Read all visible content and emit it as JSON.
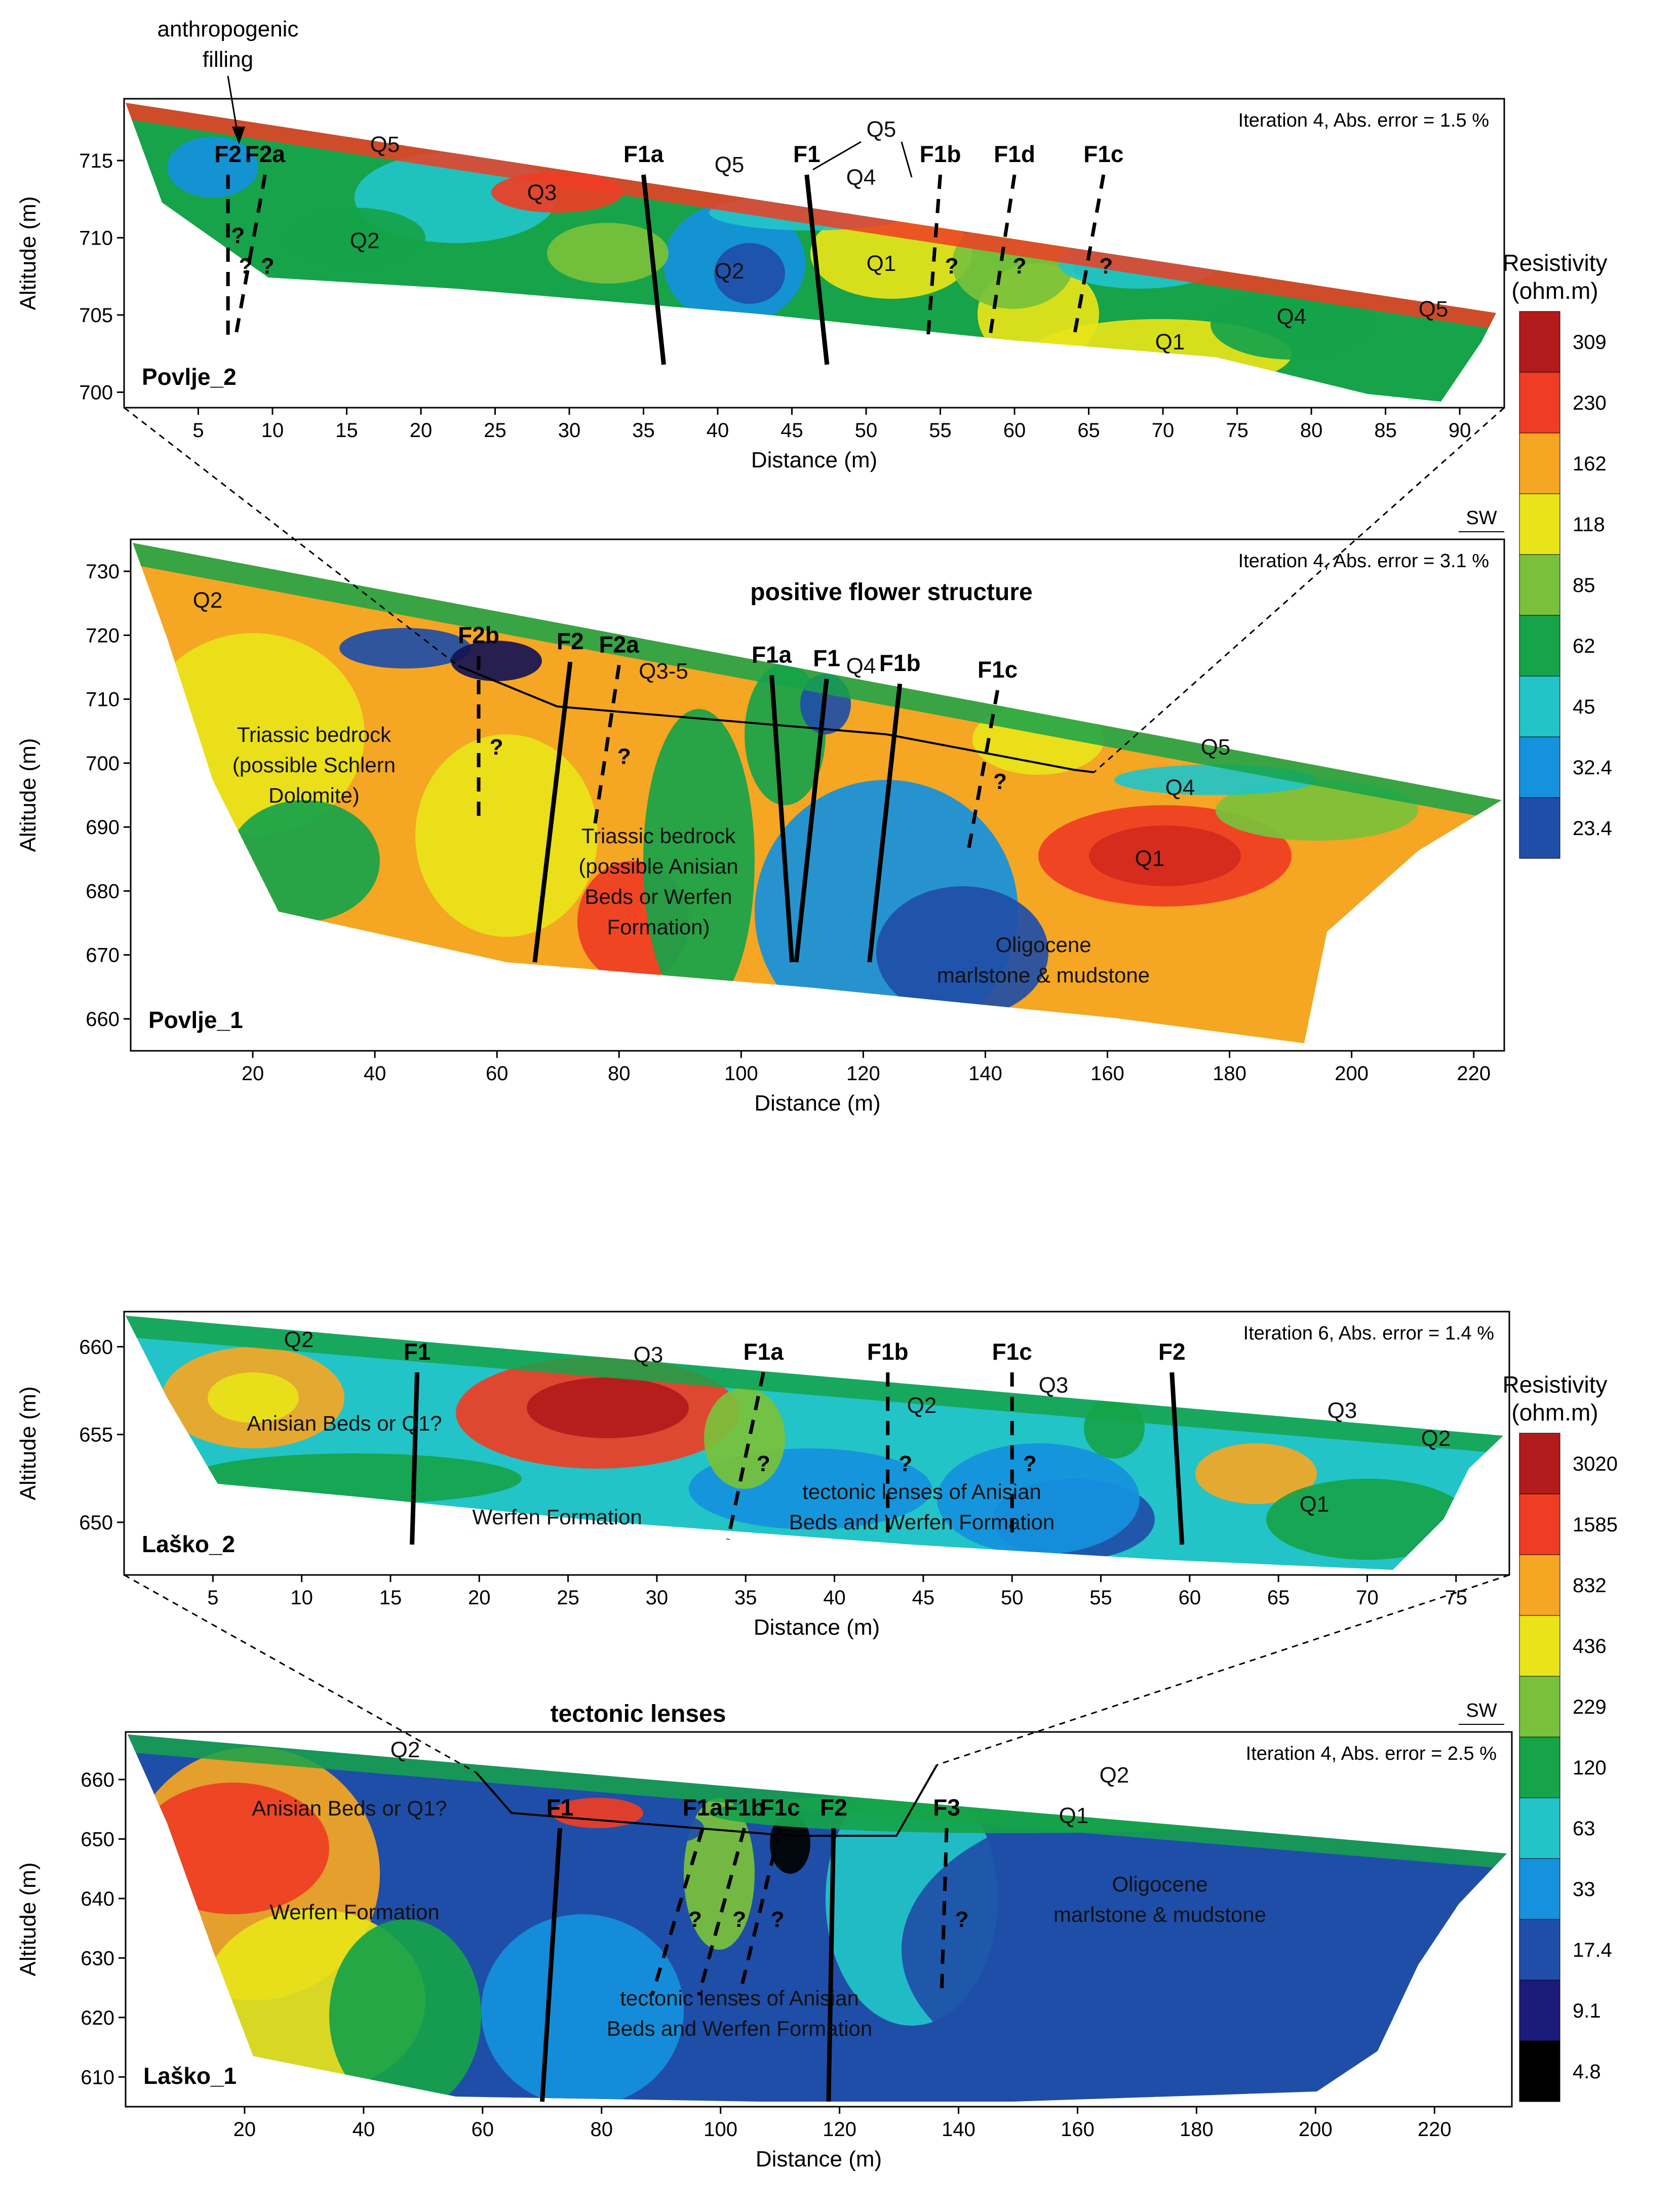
{
  "figure": {
    "colors": {
      "scale_povlje": [
        "#000000",
        "#141454",
        "#1f4ea8",
        "#1591dd",
        "#22c4c8",
        "#16a34a",
        "#79c13a",
        "#e8e419",
        "#f5a623",
        "#ef3d24",
        "#b21b1b"
      ],
      "scale_lasko": [
        "#000000",
        "#1b1b7a",
        "#1f4ea8",
        "#1591dd",
        "#22c4c8",
        "#16a34a",
        "#79c13a",
        "#e8e419",
        "#f5a623",
        "#ef3d24",
        "#b21b1b"
      ]
    }
  },
  "legends": [
    {
      "title_line1": "Resistivity",
      "title_line2": "(ohm.m)",
      "values": [
        "309",
        "230",
        "162",
        "118",
        "85",
        "62",
        "45",
        "32.4",
        "23.4"
      ]
    },
    {
      "title_line1": "Resistivity",
      "title_line2": "(ohm.m)",
      "values": [
        "3020",
        "1585",
        "832",
        "436",
        "229",
        "120",
        "63",
        "33",
        "17.4",
        "9.1",
        "4.8"
      ]
    }
  ],
  "chart_data": [
    {
      "type": "heatmap",
      "name": "Povlje_2",
      "title": "",
      "iteration": "Iteration 4, Abs. error = 1.5 %",
      "xlabel": "Distance (m)",
      "ylabel": "Altitude (m)",
      "xlim": [
        0,
        93
      ],
      "ylim": [
        699,
        719
      ],
      "x_ticks": [
        5,
        10,
        15,
        20,
        25,
        30,
        35,
        40,
        45,
        50,
        55,
        60,
        65,
        70,
        75,
        80,
        85,
        90
      ],
      "y_ticks": [
        700,
        705,
        710,
        715
      ],
      "surface": [
        [
          0,
          717.8
        ],
        [
          93,
          704.8
        ]
      ],
      "bottom": [
        [
          5,
          712
        ],
        [
          10,
          707.5
        ],
        [
          30,
          707.5
        ],
        [
          60,
          704.5
        ],
        [
          90,
          699
        ],
        [
          93,
          704
        ]
      ],
      "faults": [
        {
          "label": "F2",
          "x": 7,
          "style": "dashed"
        },
        {
          "label": "F2a",
          "x": 9.5,
          "style": "dashed"
        },
        {
          "label": "F1a",
          "x": 35,
          "style": "solid"
        },
        {
          "label": "F1",
          "x": 46,
          "style": "solid"
        },
        {
          "label": "F1b",
          "x": 55,
          "style": "dashed"
        },
        {
          "label": "F1d",
          "x": 60,
          "style": "dashed"
        },
        {
          "label": "F1c",
          "x": 66,
          "style": "dashed"
        }
      ],
      "unit_labels": [
        "Q5",
        "Q3",
        "Q2",
        "Q5",
        "Q4",
        "Q2",
        "Q1",
        "Q1",
        "Q4",
        "Q5"
      ],
      "annotations": {
        "arrow_label_1": "anthropogenic",
        "arrow_label_2": "filling",
        "q5_callout": "Q5",
        "question": "?"
      },
      "colorscale": [
        "23.4",
        "32.4",
        "45",
        "62",
        "85",
        "118",
        "162",
        "230",
        "309"
      ]
    },
    {
      "type": "heatmap",
      "name": "Povlje_1",
      "title": "positive flower structure",
      "iteration": "Iteration 4, Abs. error = 3.1 %",
      "direction": "SW",
      "xlabel": "Distance (m)",
      "ylabel": "Altitude (m)",
      "xlim": [
        0,
        225
      ],
      "ylim": [
        655,
        735
      ],
      "x_ticks": [
        20,
        40,
        60,
        80,
        100,
        120,
        140,
        160,
        180,
        200,
        220
      ],
      "y_ticks": [
        660,
        670,
        680,
        690,
        700,
        710,
        720,
        730
      ],
      "faults": [
        {
          "label": "F2b",
          "x": 57,
          "style": "dashed"
        },
        {
          "label": "F2",
          "x": 72,
          "style": "solid"
        },
        {
          "label": "F2a",
          "x": 80,
          "style": "dashed"
        },
        {
          "label": "F1a",
          "x": 105,
          "style": "solid"
        },
        {
          "label": "F1",
          "x": 114,
          "style": "solid"
        },
        {
          "label": "F1b",
          "x": 126,
          "style": "solid"
        },
        {
          "label": "F1c",
          "x": 142,
          "style": "dashed"
        }
      ],
      "unit_labels": [
        "Q2",
        "Q3-5",
        "Q4",
        "Q5",
        "Q4",
        "Q1"
      ],
      "formations": {
        "triassic_left_1": "Triassic bedrock",
        "triassic_left_2": "(possible Schlern",
        "triassic_left_3": "Dolomite)",
        "triassic_mid_1": "Triassic bedrock",
        "triassic_mid_2": "(possible Anisian",
        "triassic_mid_3": "Beds or Werfen",
        "triassic_mid_4": "Formation)",
        "oligocene_1": "Oligocene",
        "oligocene_2": "marlstone & mudstone"
      }
    },
    {
      "type": "heatmap",
      "name": "Laško_2",
      "title": "",
      "iteration": "Iteration 6, Abs. error = 1.4 %",
      "xlabel": "Distance (m)",
      "ylabel": "Altitude (m)",
      "xlim": [
        0,
        78
      ],
      "ylim": [
        647,
        662
      ],
      "x_ticks": [
        5,
        10,
        15,
        20,
        25,
        30,
        35,
        40,
        45,
        50,
        55,
        60,
        65,
        70,
        75
      ],
      "y_ticks": [
        650,
        655,
        660
      ],
      "faults": [
        {
          "label": "F1",
          "x": 16.5,
          "style": "solid"
        },
        {
          "label": "F1a",
          "x": 36,
          "style": "dashed"
        },
        {
          "label": "F1b",
          "x": 43,
          "style": "dashed"
        },
        {
          "label": "F1c",
          "x": 50,
          "style": "dashed"
        },
        {
          "label": "F2",
          "x": 59,
          "style": "solid"
        }
      ],
      "unit_labels": [
        "Q2",
        "Q3",
        "Q2",
        "Q3",
        "Q3",
        "Q2",
        "Q1"
      ],
      "formations": {
        "anisian": "Anisian Beds   or Q1?",
        "werfen": "Werfen Formation",
        "lenses_1": "tectonic lenses of Anisian",
        "lenses_2": "Beds and Werfen Formation"
      },
      "colorscale": [
        "4.8",
        "9.1",
        "17.4",
        "33",
        "63",
        "120",
        "229",
        "436",
        "832",
        "1585",
        "3020"
      ]
    },
    {
      "type": "heatmap",
      "name": "Laško_1",
      "title": "tectonic lenses",
      "iteration": "Iteration 4, Abs. error = 2.5 %",
      "direction": "SW",
      "xlabel": "Distance (m)",
      "ylabel": "Altitude (m)",
      "xlim": [
        0,
        233
      ],
      "ylim": [
        605,
        668
      ],
      "x_ticks": [
        20,
        40,
        60,
        80,
        100,
        120,
        140,
        160,
        180,
        200,
        220
      ],
      "y_ticks": [
        610,
        620,
        630,
        640,
        650,
        660
      ],
      "faults": [
        {
          "label": "F1",
          "x": 73,
          "style": "solid"
        },
        {
          "label": "F1a",
          "x": 97,
          "style": "dashed"
        },
        {
          "label": "F1b",
          "x": 104,
          "style": "dashed"
        },
        {
          "label": "F1c",
          "x": 110,
          "style": "dashed"
        },
        {
          "label": "F2",
          "x": 119,
          "style": "solid"
        },
        {
          "label": "F3",
          "x": 138,
          "style": "dashed"
        }
      ],
      "unit_labels": [
        "Q2",
        "Q2",
        "Q1"
      ],
      "formations": {
        "anisian": "Anisian Beds or Q1?",
        "werfen": "Werfen Formation",
        "lenses_1": "tectonic lenses of Anisian",
        "lenses_2": "Beds and Werfen Formation",
        "oligocene_1": "Oligocene",
        "oligocene_2": "marlstone & mudstone"
      }
    }
  ]
}
